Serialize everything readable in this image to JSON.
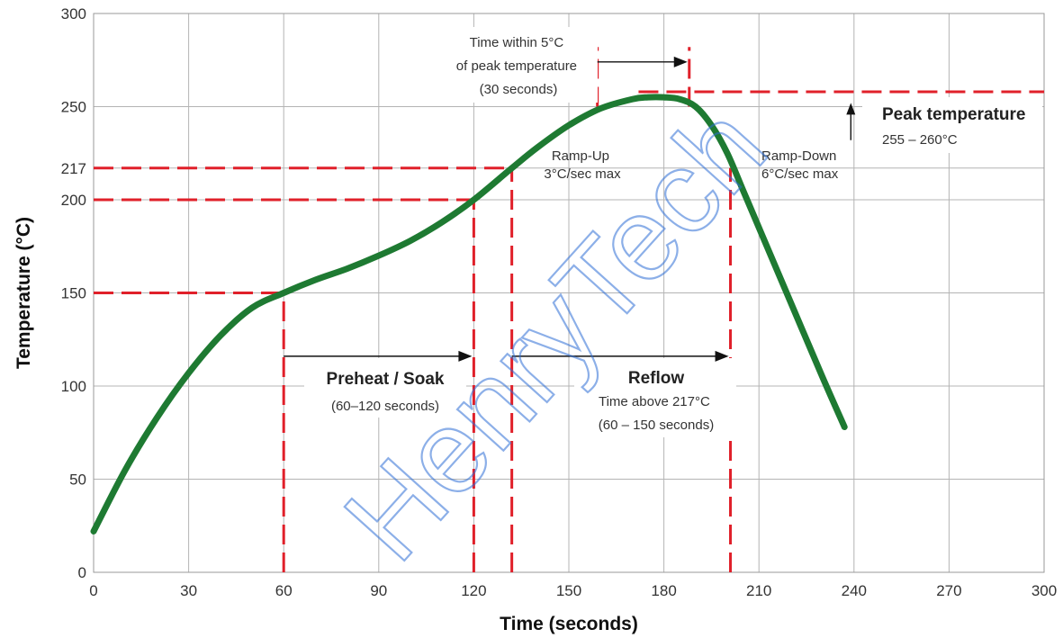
{
  "chart_data": {
    "type": "line",
    "title": "",
    "xlabel": "Time (seconds)",
    "ylabel": "Temperature (°C)",
    "xlim": [
      0,
      300
    ],
    "ylim": [
      0,
      300
    ],
    "xticks": [
      0,
      30,
      60,
      90,
      120,
      150,
      180,
      210,
      240,
      270,
      300
    ],
    "yticks": [
      0,
      50,
      100,
      150,
      200,
      217,
      250,
      300
    ],
    "grid": true,
    "series": [
      {
        "color": "#1e7a32",
        "x": [
          0,
          10,
          20,
          30,
          40,
          50,
          60,
          70,
          80,
          90,
          100,
          110,
          120,
          132,
          140,
          150,
          160,
          170,
          175,
          180,
          185,
          190,
          195,
          200,
          205,
          210,
          220,
          230,
          237
        ],
        "y": [
          22,
          55,
          83,
          107,
          127,
          142,
          150,
          157,
          163,
          170,
          178,
          188,
          200,
          217,
          228,
          240,
          249,
          254,
          255,
          255,
          254,
          250,
          240,
          225,
          205,
          185,
          145,
          105,
          78
        ]
      }
    ],
    "reference_lines": [
      {
        "orientation": "horizontal",
        "y": 150,
        "x_from": 0,
        "x_to": 60,
        "color": "#e0202a"
      },
      {
        "orientation": "horizontal",
        "y": 200,
        "x_from": 0,
        "x_to": 120,
        "color": "#e0202a"
      },
      {
        "orientation": "horizontal",
        "y": 217,
        "x_from": 0,
        "x_to": 132,
        "color": "#e0202a"
      },
      {
        "orientation": "horizontal",
        "y": 258,
        "x_from": 172,
        "x_to": 300,
        "color": "#e0202a"
      },
      {
        "orientation": "vertical",
        "x": 60,
        "y_from": 0,
        "y_to": 150,
        "color": "#e0202a"
      },
      {
        "orientation": "vertical",
        "x": 120,
        "y_from": 0,
        "y_to": 200,
        "color": "#e0202a"
      },
      {
        "orientation": "vertical",
        "x": 132,
        "y_from": 0,
        "y_to": 217,
        "color": "#e0202a"
      },
      {
        "orientation": "vertical",
        "x": 201,
        "y_from": 0,
        "y_to": 217,
        "color": "#e0202a"
      },
      {
        "orientation": "vertical",
        "x": 159,
        "y_from": 250,
        "y_to": 282,
        "color": "#e0202a"
      },
      {
        "orientation": "vertical",
        "x": 188,
        "y_from": 250,
        "y_to": 282,
        "color": "#e0202a"
      }
    ],
    "arrows": [
      {
        "name": "preheat",
        "x_from": 60,
        "x_to": 120,
        "y": 116
      },
      {
        "name": "reflow",
        "x_from": 132,
        "x_to": 201,
        "y": 116
      },
      {
        "name": "peak-window",
        "x_from": 159,
        "x_to": 188,
        "y": 274
      },
      {
        "name": "peak",
        "x": 239,
        "y_from": 232,
        "y_to": 252
      }
    ],
    "annotations": {
      "peak_window": [
        "Time within 5°C",
        "of peak temperature",
        "(30 seconds)"
      ],
      "ramp_up": [
        "Ramp-Up",
        "3°C/sec max"
      ],
      "ramp_down": [
        "Ramp-Down",
        "6°C/sec max"
      ],
      "peak_title": "Peak temperature",
      "peak_range": "255 – 260°C",
      "preheat_title": "Preheat / Soak",
      "preheat_sub": "(60–120 seconds)",
      "reflow_title": "Reflow",
      "reflow_sub": [
        "Time above 217°C",
        "(60 – 150 seconds)"
      ]
    },
    "watermark": "HenryTech"
  }
}
